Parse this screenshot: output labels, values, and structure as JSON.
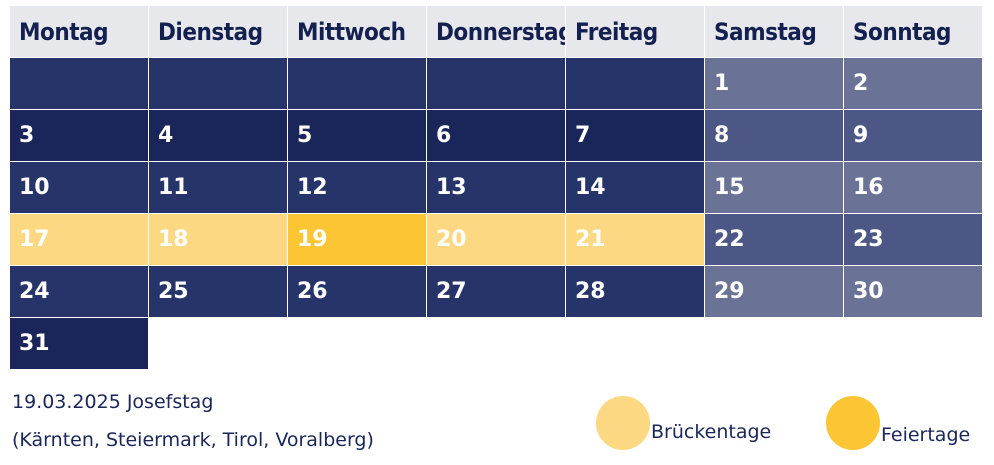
{
  "calendar": {
    "weekdays": [
      "Montag",
      "Dienstag",
      "Mittwoch",
      "Donnerstag",
      "Freitag",
      "Samstag",
      "Sonntag"
    ],
    "weeks": [
      [
        "",
        "",
        "",
        "",
        "",
        "1",
        "2"
      ],
      [
        "3",
        "4",
        "5",
        "6",
        "7",
        "8",
        "9"
      ],
      [
        "10",
        "11",
        "12",
        "13",
        "14",
        "15",
        "16"
      ],
      [
        "17",
        "18",
        "19",
        "20",
        "21",
        "22",
        "23"
      ],
      [
        "24",
        "25",
        "26",
        "27",
        "28",
        "29",
        "30"
      ],
      [
        "31",
        "",
        "",
        "",
        "",
        "",
        ""
      ]
    ],
    "bridge_days": [
      "17",
      "18",
      "20",
      "21"
    ],
    "holidays": [
      "19"
    ]
  },
  "note": {
    "line1": "19.03.2025 Josefstag",
    "line2": "(Kärnten, Steiermark, Tirol, Voralberg)"
  },
  "legend": {
    "bridge_label": "Brückentage",
    "holiday_label": "Feiertage"
  },
  "colors": {
    "weekday_dark": "#1a2659",
    "weekday_mid": "#27346a",
    "weekend_light": "#6a7396",
    "weekend_mid": "#4c5785",
    "bridge": "#fdd883",
    "holiday": "#fbc534",
    "header_bg": "#e6e8ec"
  }
}
